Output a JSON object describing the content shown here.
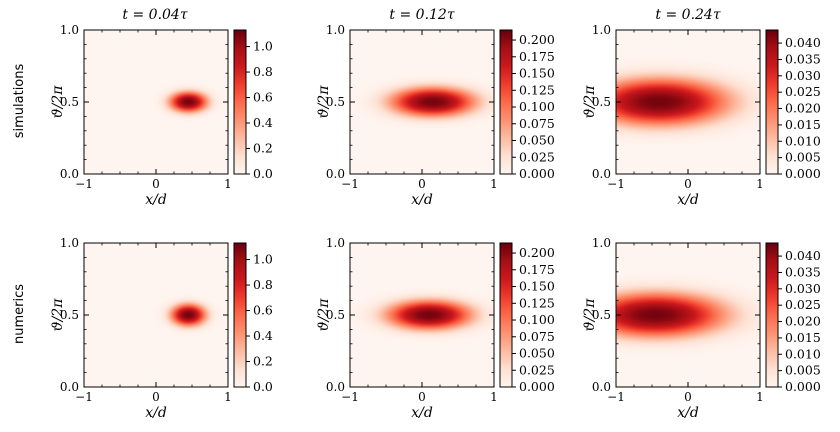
{
  "chart_data": {
    "type": "heatmap",
    "colormap": "Reds",
    "column_titles": [
      "t = 0.04τ",
      "t = 0.12τ",
      "t = 0.24τ"
    ],
    "row_labels": [
      "simulations",
      "numerics"
    ],
    "xlabel": "x/d",
    "ylabel": "ϑ/2π",
    "xlim": [
      -1,
      1
    ],
    "ylim": [
      0,
      1
    ],
    "x_ticks": [
      -1,
      0,
      1
    ],
    "x_tick_labels": [
      "−1",
      "0",
      "1"
    ],
    "y_ticks": [
      0,
      0.5,
      1
    ],
    "y_tick_labels": [
      "0.0",
      "0.5",
      "1.0"
    ],
    "panels": [
      {
        "row": "simulations",
        "time": "t = 0.04τ",
        "vmin": 0,
        "vmax": 1.13,
        "peak": {
          "x": 0.45,
          "y": 0.5
        },
        "spread_x": 0.26,
        "spread_y": 0.07,
        "colorbar_ticks": [
          0.0,
          0.2,
          0.4,
          0.6,
          0.8,
          1.0
        ],
        "colorbar_tick_labels": [
          "0.0",
          "0.2",
          "0.4",
          "0.6",
          "0.8",
          "1.0"
        ]
      },
      {
        "row": "simulations",
        "time": "t = 0.12τ",
        "vmin": 0,
        "vmax": 0.215,
        "peak": {
          "x": 0.15,
          "y": 0.5
        },
        "spread_x": 0.58,
        "spread_y": 0.1,
        "colorbar_ticks": [
          0.0,
          0.025,
          0.05,
          0.075,
          0.1,
          0.125,
          0.15,
          0.175,
          0.2
        ],
        "colorbar_tick_labels": [
          "0.000",
          "0.025",
          "0.050",
          "0.075",
          "0.100",
          "0.125",
          "0.150",
          "0.175",
          "0.200"
        ]
      },
      {
        "row": "simulations",
        "time": "t = 0.24τ",
        "vmin": 0,
        "vmax": 0.044,
        "peak": {
          "x": -0.4,
          "y": 0.5
        },
        "spread_x": 0.95,
        "spread_y": 0.16,
        "colorbar_ticks": [
          0.0,
          0.005,
          0.01,
          0.015,
          0.02,
          0.025,
          0.03,
          0.035,
          0.04
        ],
        "colorbar_tick_labels": [
          "0.000",
          "0.005",
          "0.010",
          "0.015",
          "0.020",
          "0.025",
          "0.030",
          "0.035",
          "0.040"
        ]
      },
      {
        "row": "numerics",
        "time": "t = 0.04τ",
        "vmin": 0,
        "vmax": 1.13,
        "peak": {
          "x": 0.45,
          "y": 0.5
        },
        "spread_x": 0.24,
        "spread_y": 0.075,
        "colorbar_ticks": [
          0.0,
          0.2,
          0.4,
          0.6,
          0.8,
          1.0
        ],
        "colorbar_tick_labels": [
          "0.0",
          "0.2",
          "0.4",
          "0.6",
          "0.8",
          "1.0"
        ]
      },
      {
        "row": "numerics",
        "time": "t = 0.12τ",
        "vmin": 0,
        "vmax": 0.215,
        "peak": {
          "x": 0.1,
          "y": 0.5
        },
        "spread_x": 0.58,
        "spread_y": 0.1,
        "colorbar_ticks": [
          0.0,
          0.025,
          0.05,
          0.075,
          0.1,
          0.125,
          0.15,
          0.175,
          0.2
        ],
        "colorbar_tick_labels": [
          "0.000",
          "0.025",
          "0.050",
          "0.075",
          "0.100",
          "0.125",
          "0.150",
          "0.175",
          "0.200"
        ]
      },
      {
        "row": "numerics",
        "time": "t = 0.24τ",
        "vmin": 0,
        "vmax": 0.044,
        "peak": {
          "x": -0.45,
          "y": 0.5
        },
        "spread_x": 0.95,
        "spread_y": 0.15,
        "colorbar_ticks": [
          0.0,
          0.005,
          0.01,
          0.015,
          0.02,
          0.025,
          0.03,
          0.035,
          0.04
        ],
        "colorbar_tick_labels": [
          "0.000",
          "0.005",
          "0.010",
          "0.015",
          "0.020",
          "0.025",
          "0.030",
          "0.035",
          "0.040"
        ]
      }
    ]
  }
}
